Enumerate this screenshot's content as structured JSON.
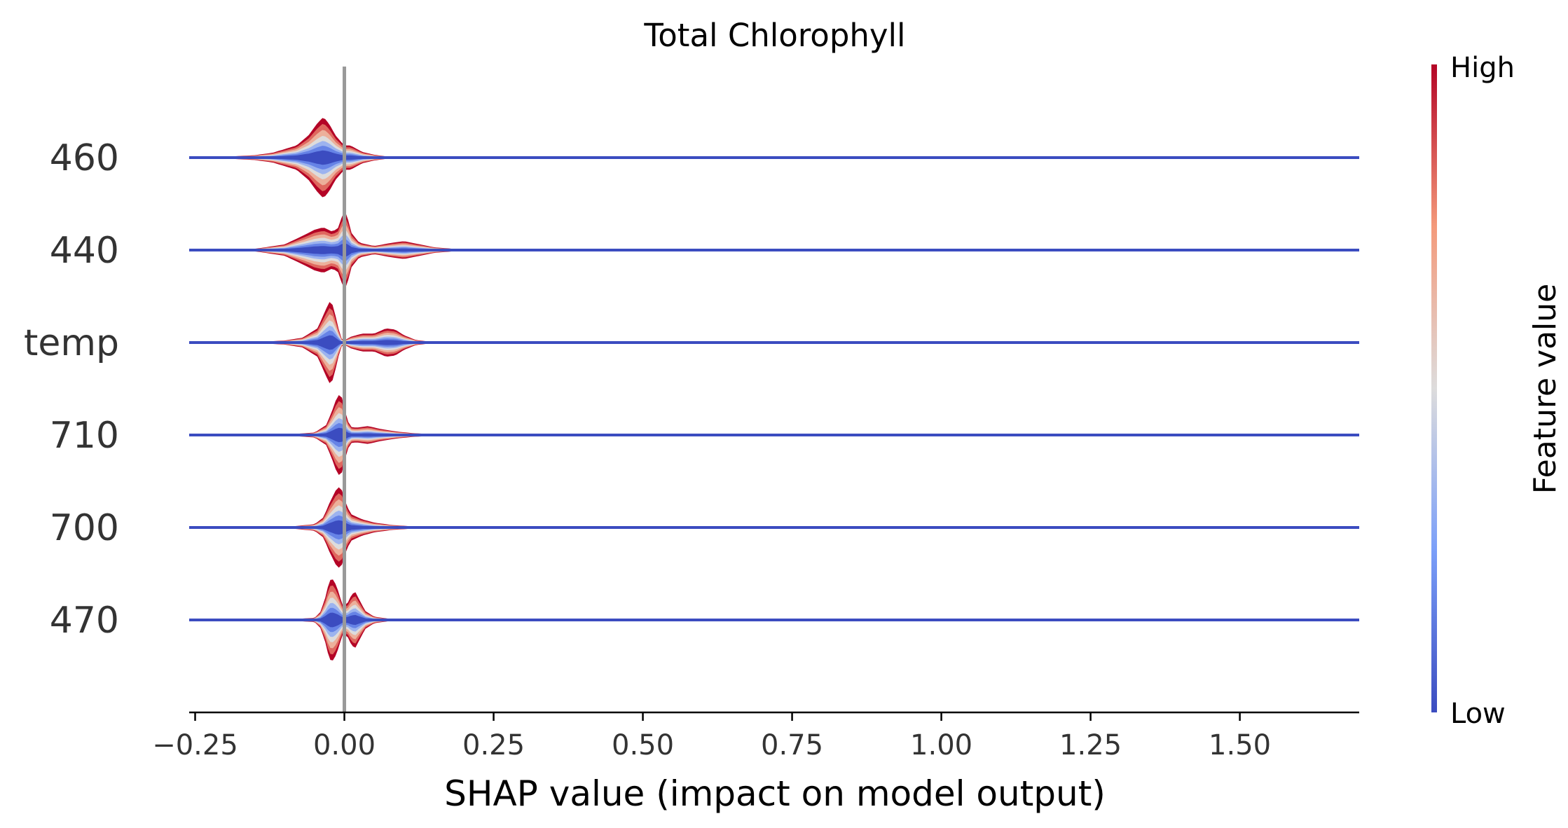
{
  "chart_data": {
    "type": "violin",
    "plot_style": "layered SHAP summary violin",
    "title": "Total Chlorophyll",
    "xlabel": "SHAP value (impact on model output)",
    "ylabel": "",
    "xlim": [
      -0.26,
      1.7
    ],
    "xticks": [
      -0.25,
      0.0,
      0.25,
      0.5,
      0.75,
      1.0,
      1.25,
      1.5
    ],
    "xtick_labels": [
      "−0.25",
      "0.00",
      "0.25",
      "0.50",
      "0.75",
      "1.00",
      "1.25",
      "1.50"
    ],
    "zero_line": 0.0,
    "features": [
      {
        "label": "460",
        "density": [
          [
            -0.26,
            0
          ],
          [
            -0.2,
            0.02
          ],
          [
            -0.15,
            0.06
          ],
          [
            -0.12,
            0.12
          ],
          [
            -0.08,
            0.3
          ],
          [
            -0.06,
            0.55
          ],
          [
            -0.045,
            0.85
          ],
          [
            -0.035,
            1.0
          ],
          [
            -0.025,
            0.82
          ],
          [
            -0.015,
            0.55
          ],
          [
            -0.005,
            0.38
          ],
          [
            0.0,
            0.3
          ],
          [
            0.01,
            0.3
          ],
          [
            0.02,
            0.22
          ],
          [
            0.03,
            0.14
          ],
          [
            0.05,
            0.07
          ],
          [
            0.07,
            0.03
          ],
          [
            0.1,
            0.01
          ],
          [
            0.15,
            0
          ]
        ]
      },
      {
        "label": "440",
        "density": [
          [
            -0.26,
            0
          ],
          [
            -0.15,
            0.03
          ],
          [
            -0.1,
            0.14
          ],
          [
            -0.07,
            0.35
          ],
          [
            -0.05,
            0.5
          ],
          [
            -0.035,
            0.56
          ],
          [
            -0.02,
            0.45
          ],
          [
            -0.01,
            0.55
          ],
          [
            -0.003,
            0.88
          ],
          [
            0.0,
            1.0
          ],
          [
            0.005,
            0.82
          ],
          [
            0.012,
            0.42
          ],
          [
            0.025,
            0.18
          ],
          [
            0.05,
            0.1
          ],
          [
            0.08,
            0.18
          ],
          [
            0.1,
            0.22
          ],
          [
            0.12,
            0.16
          ],
          [
            0.15,
            0.07
          ],
          [
            0.2,
            0.01
          ],
          [
            0.25,
            0
          ]
        ]
      },
      {
        "label": "temp",
        "density": [
          [
            -0.26,
            0
          ],
          [
            -0.15,
            0.01
          ],
          [
            -0.1,
            0.05
          ],
          [
            -0.07,
            0.12
          ],
          [
            -0.045,
            0.35
          ],
          [
            -0.03,
            0.85
          ],
          [
            -0.025,
            1.0
          ],
          [
            -0.018,
            0.9
          ],
          [
            -0.012,
            0.45
          ],
          [
            -0.005,
            0.1
          ],
          [
            0.0,
            0.05
          ],
          [
            0.01,
            0.14
          ],
          [
            0.03,
            0.22
          ],
          [
            0.05,
            0.22
          ],
          [
            0.07,
            0.35
          ],
          [
            0.085,
            0.32
          ],
          [
            0.1,
            0.18
          ],
          [
            0.12,
            0.06
          ],
          [
            0.15,
            0.01
          ],
          [
            0.2,
            0
          ]
        ]
      },
      {
        "label": "710",
        "density": [
          [
            -0.26,
            0
          ],
          [
            -0.1,
            0.01
          ],
          [
            -0.05,
            0.06
          ],
          [
            -0.03,
            0.25
          ],
          [
            -0.02,
            0.62
          ],
          [
            -0.012,
            0.95
          ],
          [
            -0.008,
            1.0
          ],
          [
            -0.003,
            0.9
          ],
          [
            0.003,
            0.45
          ],
          [
            0.01,
            0.2
          ],
          [
            0.02,
            0.18
          ],
          [
            0.04,
            0.22
          ],
          [
            0.06,
            0.15
          ],
          [
            0.09,
            0.08
          ],
          [
            0.12,
            0.04
          ],
          [
            0.17,
            0.01
          ],
          [
            0.22,
            0
          ]
        ]
      },
      {
        "label": "700",
        "density": [
          [
            -0.26,
            0
          ],
          [
            -0.1,
            0.01
          ],
          [
            -0.05,
            0.08
          ],
          [
            -0.035,
            0.25
          ],
          [
            -0.025,
            0.6
          ],
          [
            -0.015,
            0.9
          ],
          [
            -0.01,
            1.0
          ],
          [
            -0.003,
            0.9
          ],
          [
            0.003,
            0.55
          ],
          [
            0.012,
            0.32
          ],
          [
            0.03,
            0.2
          ],
          [
            0.05,
            0.12
          ],
          [
            0.08,
            0.06
          ],
          [
            0.11,
            0.03
          ],
          [
            0.16,
            0.01
          ],
          [
            0.22,
            0
          ]
        ]
      },
      {
        "label": "470",
        "density": [
          [
            -0.26,
            0
          ],
          [
            -0.1,
            0.01
          ],
          [
            -0.05,
            0.05
          ],
          [
            -0.04,
            0.2
          ],
          [
            -0.032,
            0.55
          ],
          [
            -0.025,
            0.98
          ],
          [
            -0.018,
            1.0
          ],
          [
            -0.01,
            0.7
          ],
          [
            -0.003,
            0.35
          ],
          [
            0.005,
            0.4
          ],
          [
            0.012,
            0.62
          ],
          [
            0.018,
            0.7
          ],
          [
            0.025,
            0.5
          ],
          [
            0.035,
            0.22
          ],
          [
            0.05,
            0.08
          ],
          [
            0.08,
            0.02
          ],
          [
            0.12,
            0
          ]
        ]
      }
    ],
    "colorbar": {
      "label": "Feature value",
      "high_label": "High",
      "low_label": "Low",
      "colormap": "coolwarm"
    },
    "colors": {
      "low": "#3b4cc0",
      "mid": "#dddcdc",
      "high": "#b40426",
      "baseline": "#3b4cc0",
      "zero_line": "#999999",
      "axis": "#000000"
    }
  }
}
